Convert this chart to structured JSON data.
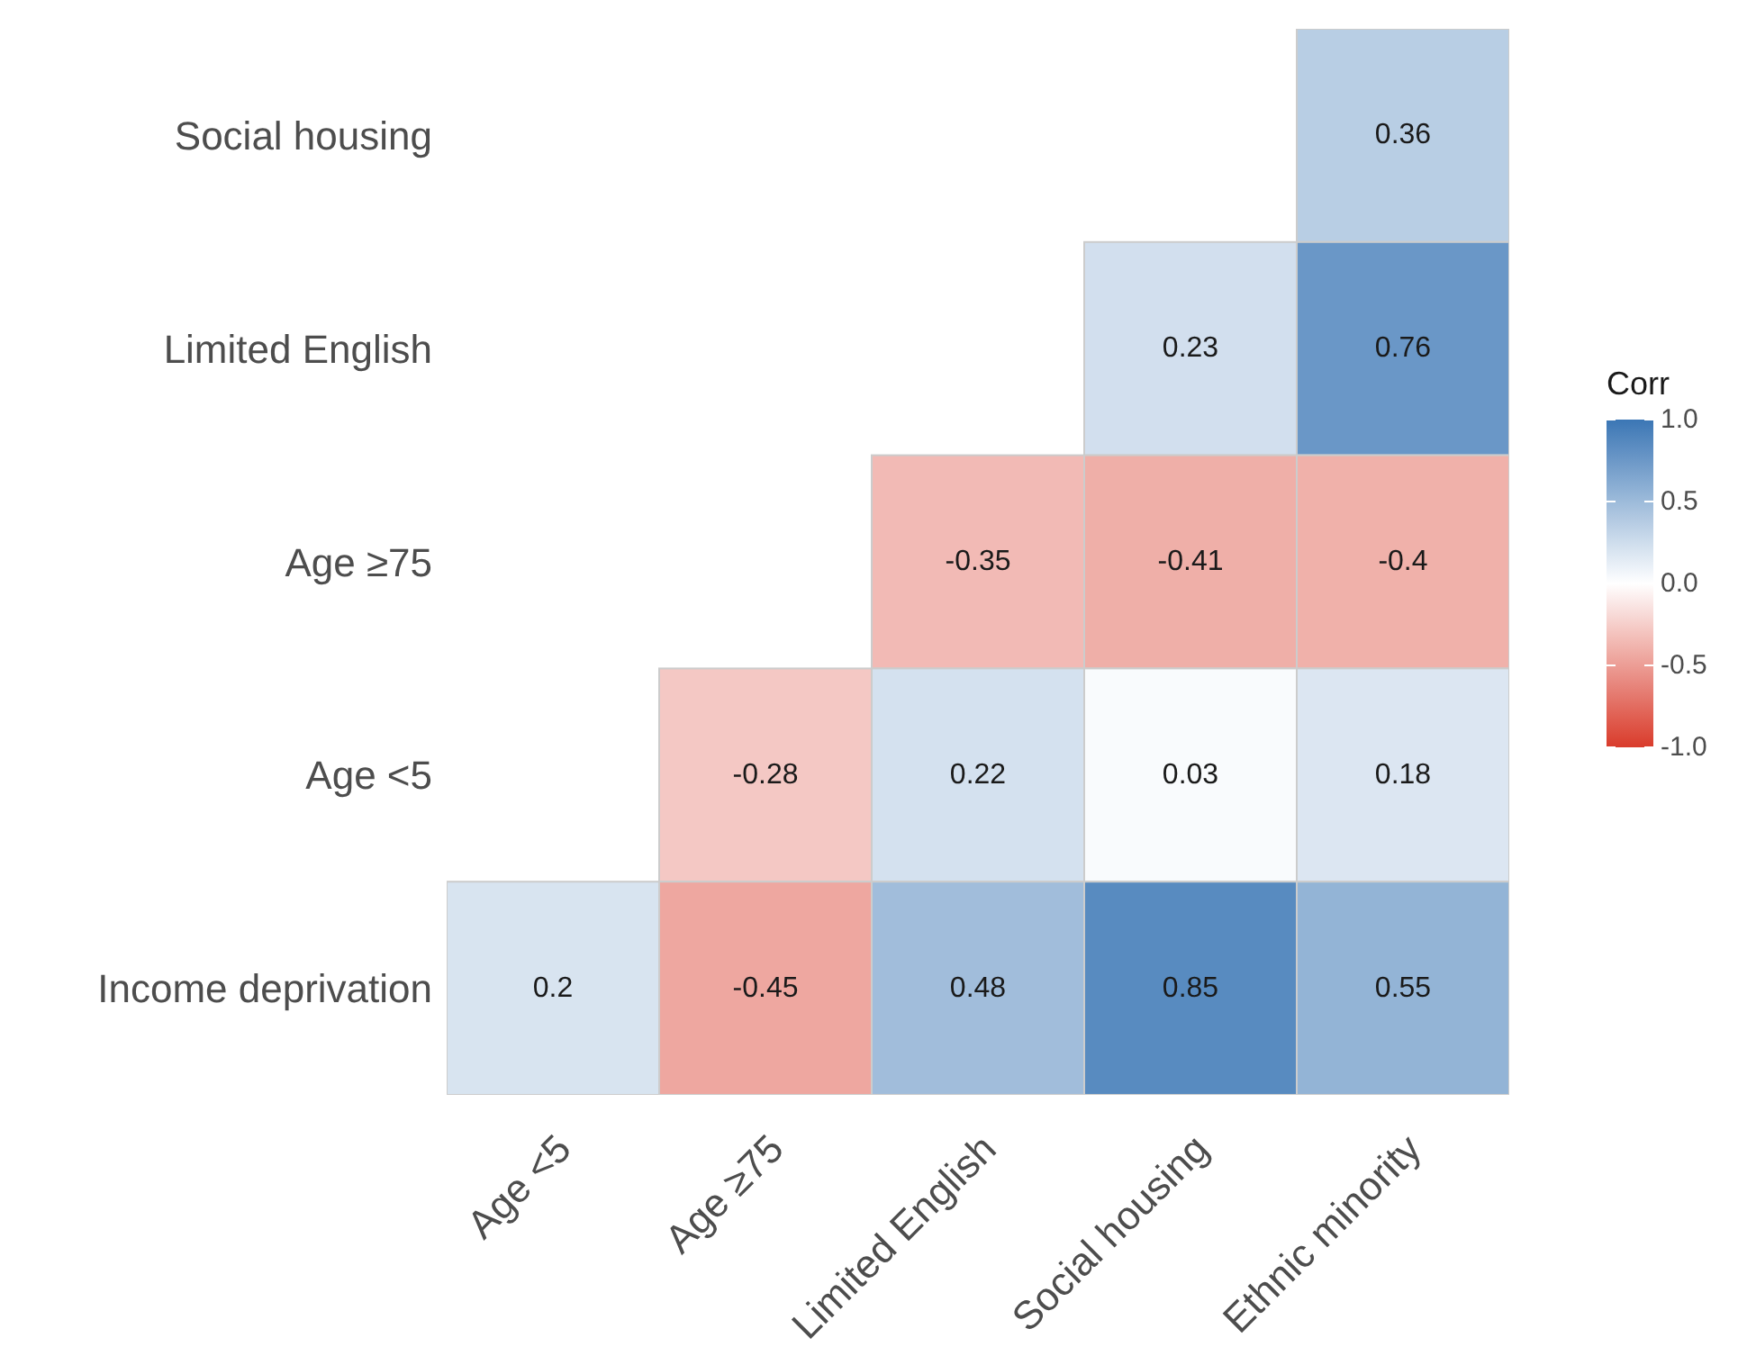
{
  "chart_data": {
    "type": "heatmap",
    "clabel": "Corr",
    "categories": [
      "Age <5",
      "Age ≥75",
      "Limited English",
      "Social housing",
      "Ethnic minority"
    ],
    "y_categories": [
      "Social housing",
      "Limited English",
      "Age ≥75",
      "Age <5",
      "Income deprivation"
    ],
    "cells": [
      [
        null,
        null,
        null,
        null,
        0.36
      ],
      [
        null,
        null,
        null,
        0.23,
        0.76
      ],
      [
        null,
        null,
        -0.35,
        -0.41,
        -0.4
      ],
      [
        null,
        -0.28,
        0.22,
        0.03,
        0.18
      ],
      [
        0.2,
        -0.45,
        0.48,
        0.85,
        0.55
      ]
    ],
    "clim": [
      -1,
      1
    ],
    "cticks": [
      {
        "value": -1,
        "label": "-1.0"
      },
      {
        "value": -0.5,
        "label": "-0.5"
      },
      {
        "value": 0,
        "label": "0.0"
      },
      {
        "value": 0.5,
        "label": "0.5"
      },
      {
        "value": 1,
        "label": "1.0"
      }
    ],
    "data_labels": true
  }
}
